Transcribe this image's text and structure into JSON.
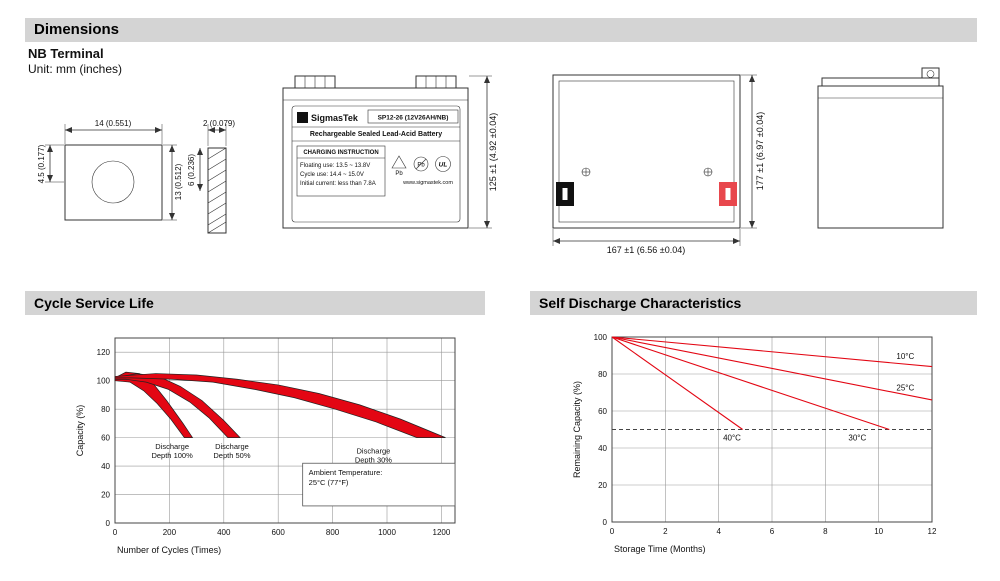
{
  "page": {
    "title_dimensions": "Dimensions",
    "nb_terminal": "NB Terminal",
    "unit": "Unit: mm (inches)"
  },
  "sections": {
    "cycle": "Cycle Service Life",
    "self_discharge": "Self Discharge Characteristics"
  },
  "colors": {
    "header_bg": "#d4d4d4",
    "accent_red": "#e30613",
    "terminal_red": "#e8474d"
  },
  "drawings": {
    "terminal": {
      "dim_width": "14 (0.551)",
      "dim_thickness": "2 (0.079)",
      "dim_hole": "4.5 (0.177)",
      "dim_height": "13 (0.512)",
      "dim_depth": "6 (0.236)"
    },
    "front_view": {
      "logo_letter": "S",
      "brand": "SigmasTek",
      "model": "SP12-26 (12V26AH/NB)",
      "subtitle": "Rechargeable Sealed Lead-Acid Battery",
      "charging_title": "CHARGING INSTRUCTION",
      "charging_lines": [
        "Floating use: 13.5 ~ 13.8V",
        "Cycle use: 14.4 ~ 15.0V",
        "Initial current: less than 7.8A"
      ],
      "pb_label": "Pb",
      "ul_label": "UL",
      "website": "www.sigmastek.com",
      "dim_height": "125 ±1 (4.92 ±0.04)"
    },
    "top_view": {
      "dim_width": "167 ±1 (6.56 ±0.04)",
      "dim_height": "177 ±1 (6.97 ±0.04)"
    }
  },
  "chart_data": [
    {
      "type": "area",
      "title": "Cycle Service Life",
      "xlabel": "Number of Cycles (Times)",
      "ylabel": "Capacity (%)",
      "xlim": [
        0,
        1250
      ],
      "ylim": [
        0,
        130
      ],
      "xticks": [
        0,
        200,
        400,
        600,
        800,
        1000,
        1200
      ],
      "yticks": [
        0,
        20,
        40,
        60,
        80,
        100,
        120
      ],
      "color": "#e30613",
      "bands": [
        {
          "name": "Discharge Depth 100%",
          "upper": [
            [
              0,
              102
            ],
            [
              40,
              106
            ],
            [
              90,
              105
            ],
            [
              140,
              98
            ],
            [
              190,
              86
            ],
            [
              250,
              70
            ],
            [
              285,
              60
            ]
          ],
          "lower": [
            [
              255,
              60
            ],
            [
              205,
              73
            ],
            [
              155,
              84
            ],
            [
              105,
              93
            ],
            [
              55,
              99
            ],
            [
              0,
              100
            ]
          ]
        },
        {
          "name": "Discharge Depth 50%",
          "upper": [
            [
              0,
              102
            ],
            [
              80,
              105
            ],
            [
              160,
              103
            ],
            [
              240,
              96
            ],
            [
              320,
              86
            ],
            [
              400,
              72
            ],
            [
              460,
              60
            ]
          ],
          "lower": [
            [
              415,
              60
            ],
            [
              345,
              74
            ],
            [
              275,
              85
            ],
            [
              195,
              94
            ],
            [
              115,
              99
            ],
            [
              40,
              101
            ],
            [
              0,
              101
            ]
          ]
        },
        {
          "name": "Discharge Depth 30%",
          "upper": [
            [
              0,
              103
            ],
            [
              150,
              105
            ],
            [
              300,
              104
            ],
            [
              450,
              101
            ],
            [
              600,
              97
            ],
            [
              750,
              91
            ],
            [
              900,
              83
            ],
            [
              1050,
              73
            ],
            [
              1215,
              60
            ]
          ],
          "lower": [
            [
              1110,
              60
            ],
            [
              960,
              71
            ],
            [
              810,
              80
            ],
            [
              660,
              88
            ],
            [
              510,
              94
            ],
            [
              360,
              99
            ],
            [
              210,
              101
            ],
            [
              60,
              102
            ],
            [
              0,
              102
            ]
          ]
        }
      ],
      "annotations": [
        {
          "x": 210,
          "y": 52,
          "lines": [
            "Discharge",
            "Depth 100%"
          ]
        },
        {
          "x": 430,
          "y": 52,
          "lines": [
            "Discharge",
            "Depth 50%"
          ]
        },
        {
          "x": 950,
          "y": 49,
          "lines": [
            "Discharge",
            "Depth 30%"
          ]
        }
      ],
      "note_box": {
        "x1": 690,
        "y1": 12,
        "x2": 1250,
        "y2": 42,
        "lines": [
          "Ambient Temperature:",
          "25°C (77°F)"
        ]
      }
    },
    {
      "type": "line",
      "title": "Self Discharge Characteristics",
      "xlabel": "Storage Time (Months)",
      "ylabel": "Remaining Capacity (%)",
      "xlim": [
        0,
        12
      ],
      "ylim": [
        0,
        100
      ],
      "xticks": [
        0,
        2,
        4,
        6,
        8,
        10,
        12
      ],
      "yticks": [
        0,
        20,
        40,
        60,
        80,
        100
      ],
      "color": "#e30613",
      "dashed_line_y": 50,
      "series": [
        {
          "name": "10°C",
          "points": [
            [
              0,
              100
            ],
            [
              12,
              84
            ]
          ],
          "label_pos": [
            11.0,
            88
          ]
        },
        {
          "name": "25°C",
          "points": [
            [
              0,
              100
            ],
            [
              12,
              66
            ]
          ],
          "label_pos": [
            11.0,
            71
          ]
        },
        {
          "name": "30°C",
          "points": [
            [
              0,
              100
            ],
            [
              10.4,
              50
            ]
          ],
          "label_pos": [
            9.2,
            44
          ]
        },
        {
          "name": "40°C",
          "points": [
            [
              0,
              100
            ],
            [
              4.9,
              50
            ]
          ],
          "label_pos": [
            4.5,
            44
          ]
        }
      ]
    }
  ]
}
